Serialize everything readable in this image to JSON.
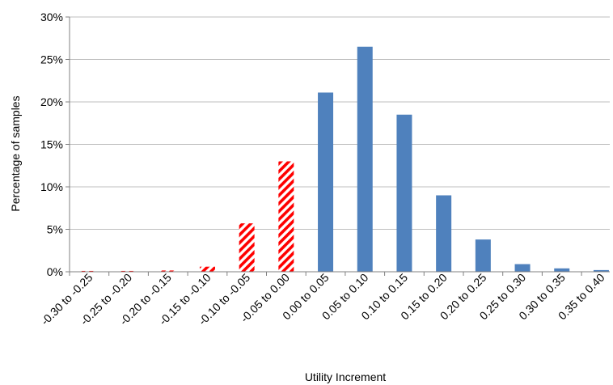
{
  "chart_data": {
    "type": "bar",
    "title": "",
    "xlabel": "Utility Increment",
    "ylabel": "Percentage of samples",
    "ylim": [
      0,
      30
    ],
    "yticks": [
      "0%",
      "5%",
      "10%",
      "15%",
      "20%",
      "25%",
      "30%"
    ],
    "ytick_values": [
      0,
      5,
      10,
      15,
      20,
      25,
      30
    ],
    "grid": true,
    "legend": "none",
    "categories": [
      "-0.30 to -0.25",
      "-0.25 to -0.20",
      "-0.20 to -0.15",
      "-0.15 to -0.10",
      "-0.10 to -0.05",
      "-0.05 to 0.00",
      "0.00 to 0.05",
      "0.05 to 0.10",
      "0.10 to 0.15",
      "0.15 to 0.20",
      "0.20 to 0.25",
      "0.25 to 0.30",
      "0.30 to 0.35",
      "0.35 to 0.40"
    ],
    "values": [
      0.1,
      0.1,
      0.15,
      0.6,
      5.7,
      13.0,
      21.1,
      26.5,
      18.5,
      9.0,
      3.8,
      0.9,
      0.4,
      0.2
    ],
    "styles": [
      "hatched",
      "hatched",
      "hatched",
      "hatched",
      "hatched",
      "hatched",
      "solid",
      "solid",
      "solid",
      "solid",
      "solid",
      "solid",
      "solid",
      "solid"
    ],
    "colors": {
      "positive": "#4f81bd",
      "negative_hatch": "#ff0000",
      "grid": "#bfbfbf",
      "axis": "#808080"
    }
  }
}
